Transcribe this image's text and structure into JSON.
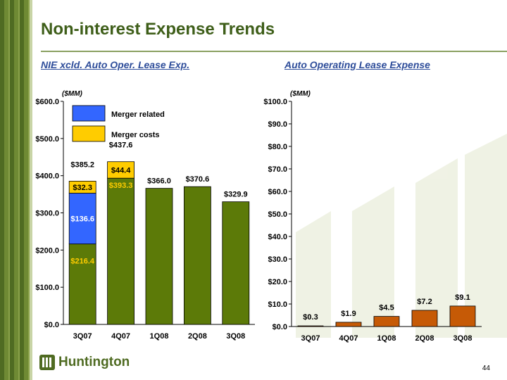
{
  "slide": {
    "title": "Non-interest Expense Trends",
    "page_number": "44",
    "logo_text": "Huntington"
  },
  "left_chart_header": {
    "subtitle": "NIE xcld. Auto Oper. Lease Exp.",
    "unit": "($MM)"
  },
  "right_chart_header": {
    "subtitle": "Auto Operating Lease Expense",
    "unit": "($MM)"
  },
  "colors": {
    "base": "#5c7a08",
    "merger_related": "#3366ff",
    "merger_costs": "#ffcc00",
    "lease": "#c65a06",
    "title": "#3e5e19",
    "subtitle": "#2e4d9a"
  },
  "chart_data": [
    {
      "type": "bar",
      "stacked": true,
      "categories": [
        "3Q07",
        "4Q07",
        "1Q08",
        "2Q08",
        "3Q08"
      ],
      "series": [
        {
          "name": "",
          "values": [
            216.4,
            393.3,
            366.0,
            370.6,
            329.9
          ],
          "labels": [
            "$216.4",
            "$393.3",
            "",
            "",
            ""
          ]
        },
        {
          "name": "Merger related",
          "values": [
            136.6,
            0,
            0,
            0,
            0
          ],
          "labels": [
            "$136.6",
            "",
            "",
            "",
            ""
          ]
        },
        {
          "name": "Merger costs",
          "values": [
            32.3,
            44.4,
            0,
            0,
            0
          ],
          "labels": [
            "$32.3",
            "$44.4",
            "",
            "",
            ""
          ]
        }
      ],
      "totals": [
        "$385.2",
        "$437.6",
        "$366.0",
        "$370.6",
        "$329.9"
      ],
      "y_ticks": [
        "$0.0",
        "$100.0",
        "$200.0",
        "$300.0",
        "$400.0",
        "$500.0",
        "$600.0"
      ],
      "ylim": [
        0,
        600
      ],
      "legend": {
        "placement": "top-left",
        "entries": [
          "Merger related",
          "Merger costs"
        ]
      }
    },
    {
      "type": "bar",
      "categories": [
        "3Q07",
        "4Q07",
        "1Q08",
        "2Q08",
        "3Q08"
      ],
      "values": [
        0.3,
        1.9,
        4.5,
        7.2,
        9.1
      ],
      "labels": [
        "$0.3",
        "$1.9",
        "$4.5",
        "$7.2",
        "$9.1"
      ],
      "y_ticks": [
        "$0.0",
        "$10.0",
        "$20.0",
        "$30.0",
        "$40.0",
        "$50.0",
        "$60.0",
        "$70.0",
        "$80.0",
        "$90.0",
        "$100.0"
      ],
      "ylim": [
        0,
        100
      ]
    }
  ]
}
